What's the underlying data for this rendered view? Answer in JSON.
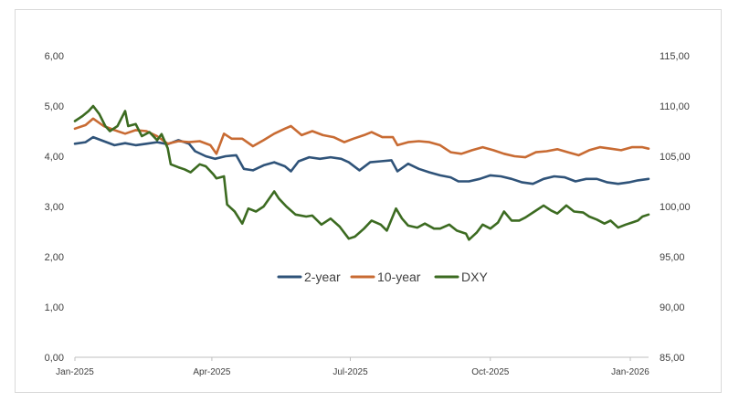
{
  "chart_data": {
    "type": "line",
    "title": "",
    "xlabel": "",
    "ylabel": "",
    "y2label": "",
    "grid": false,
    "legend_position": "center",
    "x_ticks": [
      "Jan-2025",
      "Apr-2025",
      "Jul-2025",
      "Oct-2025",
      "Jan-2026"
    ],
    "x_tick_dates": [
      "2025-01-01",
      "2025-04-01",
      "2025-07-01",
      "2025-10-01",
      "2026-01-01"
    ],
    "x_range": [
      "2025-01-01",
      "2026-01-13"
    ],
    "y_left": {
      "min": 0,
      "max": 6,
      "step": 1,
      "tick_labels": [
        "0,00",
        "1,00",
        "2,00",
        "3,00",
        "4,00",
        "5,00",
        "6,00"
      ]
    },
    "y_right": {
      "min": 85,
      "max": 115,
      "step": 5,
      "tick_labels": [
        "85,00",
        "90,00",
        "95,00",
        "100,00",
        "105,00",
        "110,00",
        "115,00"
      ]
    },
    "series": [
      {
        "name": "2-year",
        "axis": "left",
        "color": "#2f5379",
        "points": [
          [
            "2025-01-01",
            4.25
          ],
          [
            "2025-01-08",
            4.28
          ],
          [
            "2025-01-13",
            4.38
          ],
          [
            "2025-01-20",
            4.3
          ],
          [
            "2025-01-27",
            4.22
          ],
          [
            "2025-02-03",
            4.26
          ],
          [
            "2025-02-10",
            4.22
          ],
          [
            "2025-02-17",
            4.25
          ],
          [
            "2025-02-24",
            4.28
          ],
          [
            "2025-03-03",
            4.24
          ],
          [
            "2025-03-10",
            4.32
          ],
          [
            "2025-03-17",
            4.25
          ],
          [
            "2025-03-21",
            4.1
          ],
          [
            "2025-03-28",
            4.0
          ],
          [
            "2025-04-03",
            3.95
          ],
          [
            "2025-04-10",
            4.0
          ],
          [
            "2025-04-17",
            4.02
          ],
          [
            "2025-04-22",
            3.75
          ],
          [
            "2025-04-28",
            3.72
          ],
          [
            "2025-05-05",
            3.82
          ],
          [
            "2025-05-12",
            3.88
          ],
          [
            "2025-05-19",
            3.8
          ],
          [
            "2025-05-23",
            3.7
          ],
          [
            "2025-05-28",
            3.9
          ],
          [
            "2025-06-04",
            3.98
          ],
          [
            "2025-06-11",
            3.95
          ],
          [
            "2025-06-18",
            3.98
          ],
          [
            "2025-06-25",
            3.95
          ],
          [
            "2025-06-30",
            3.88
          ],
          [
            "2025-07-07",
            3.72
          ],
          [
            "2025-07-14",
            3.88
          ],
          [
            "2025-07-21",
            3.9
          ],
          [
            "2025-07-28",
            3.92
          ],
          [
            "2025-08-01",
            3.7
          ],
          [
            "2025-08-08",
            3.85
          ],
          [
            "2025-08-15",
            3.75
          ],
          [
            "2025-08-22",
            3.68
          ],
          [
            "2025-08-29",
            3.62
          ],
          [
            "2025-09-05",
            3.58
          ],
          [
            "2025-09-10",
            3.5
          ],
          [
            "2025-09-17",
            3.5
          ],
          [
            "2025-09-24",
            3.55
          ],
          [
            "2025-10-01",
            3.62
          ],
          [
            "2025-10-08",
            3.6
          ],
          [
            "2025-10-15",
            3.55
          ],
          [
            "2025-10-22",
            3.48
          ],
          [
            "2025-10-29",
            3.45
          ],
          [
            "2025-11-05",
            3.55
          ],
          [
            "2025-11-12",
            3.6
          ],
          [
            "2025-11-19",
            3.58
          ],
          [
            "2025-11-26",
            3.5
          ],
          [
            "2025-12-03",
            3.55
          ],
          [
            "2025-12-10",
            3.55
          ],
          [
            "2025-12-17",
            3.48
          ],
          [
            "2025-12-24",
            3.45
          ],
          [
            "2025-12-31",
            3.48
          ],
          [
            "2026-01-06",
            3.52
          ],
          [
            "2026-01-13",
            3.55
          ]
        ]
      },
      {
        "name": "10-year",
        "axis": "left",
        "color": "#c86b33",
        "points": [
          [
            "2025-01-01",
            4.55
          ],
          [
            "2025-01-08",
            4.62
          ],
          [
            "2025-01-13",
            4.75
          ],
          [
            "2025-01-20",
            4.6
          ],
          [
            "2025-01-27",
            4.52
          ],
          [
            "2025-02-03",
            4.45
          ],
          [
            "2025-02-10",
            4.52
          ],
          [
            "2025-02-17",
            4.5
          ],
          [
            "2025-02-24",
            4.4
          ],
          [
            "2025-03-03",
            4.25
          ],
          [
            "2025-03-10",
            4.3
          ],
          [
            "2025-03-17",
            4.28
          ],
          [
            "2025-03-24",
            4.3
          ],
          [
            "2025-03-31",
            4.22
          ],
          [
            "2025-04-04",
            4.05
          ],
          [
            "2025-04-09",
            4.45
          ],
          [
            "2025-04-14",
            4.35
          ],
          [
            "2025-04-21",
            4.35
          ],
          [
            "2025-04-28",
            4.2
          ],
          [
            "2025-05-05",
            4.32
          ],
          [
            "2025-05-12",
            4.45
          ],
          [
            "2025-05-19",
            4.55
          ],
          [
            "2025-05-23",
            4.6
          ],
          [
            "2025-05-30",
            4.42
          ],
          [
            "2025-06-06",
            4.5
          ],
          [
            "2025-06-13",
            4.42
          ],
          [
            "2025-06-20",
            4.38
          ],
          [
            "2025-06-27",
            4.28
          ],
          [
            "2025-07-03",
            4.35
          ],
          [
            "2025-07-10",
            4.42
          ],
          [
            "2025-07-15",
            4.48
          ],
          [
            "2025-07-22",
            4.38
          ],
          [
            "2025-07-29",
            4.38
          ],
          [
            "2025-08-01",
            4.22
          ],
          [
            "2025-08-08",
            4.28
          ],
          [
            "2025-08-15",
            4.3
          ],
          [
            "2025-08-22",
            4.28
          ],
          [
            "2025-08-29",
            4.22
          ],
          [
            "2025-09-05",
            4.08
          ],
          [
            "2025-09-12",
            4.05
          ],
          [
            "2025-09-19",
            4.12
          ],
          [
            "2025-09-26",
            4.18
          ],
          [
            "2025-10-03",
            4.12
          ],
          [
            "2025-10-10",
            4.05
          ],
          [
            "2025-10-17",
            4.0
          ],
          [
            "2025-10-24",
            3.98
          ],
          [
            "2025-10-31",
            4.08
          ],
          [
            "2025-11-07",
            4.1
          ],
          [
            "2025-11-14",
            4.14
          ],
          [
            "2025-11-21",
            4.08
          ],
          [
            "2025-11-28",
            4.02
          ],
          [
            "2025-12-05",
            4.12
          ],
          [
            "2025-12-12",
            4.18
          ],
          [
            "2025-12-19",
            4.15
          ],
          [
            "2025-12-26",
            4.12
          ],
          [
            "2026-01-02",
            4.18
          ],
          [
            "2026-01-09",
            4.18
          ],
          [
            "2026-01-13",
            4.15
          ]
        ]
      },
      {
        "name": "DXY",
        "axis": "right",
        "color": "#3c6b21",
        "points": [
          [
            "2025-01-01",
            108.5
          ],
          [
            "2025-01-06",
            109.0
          ],
          [
            "2025-01-10",
            109.5
          ],
          [
            "2025-01-13",
            110.0
          ],
          [
            "2025-01-17",
            109.2
          ],
          [
            "2025-01-21",
            108.0
          ],
          [
            "2025-01-24",
            107.5
          ],
          [
            "2025-01-29",
            108.0
          ],
          [
            "2025-02-03",
            109.5
          ],
          [
            "2025-02-05",
            108.0
          ],
          [
            "2025-02-10",
            108.2
          ],
          [
            "2025-02-14",
            107.0
          ],
          [
            "2025-02-19",
            107.4
          ],
          [
            "2025-02-24",
            106.6
          ],
          [
            "2025-02-27",
            107.2
          ],
          [
            "2025-03-03",
            105.8
          ],
          [
            "2025-03-05",
            104.2
          ],
          [
            "2025-03-10",
            103.9
          ],
          [
            "2025-03-14",
            103.7
          ],
          [
            "2025-03-18",
            103.4
          ],
          [
            "2025-03-24",
            104.2
          ],
          [
            "2025-03-28",
            104.0
          ],
          [
            "2025-04-02",
            103.2
          ],
          [
            "2025-04-04",
            102.8
          ],
          [
            "2025-04-09",
            103.0
          ],
          [
            "2025-04-11",
            100.2
          ],
          [
            "2025-04-16",
            99.5
          ],
          [
            "2025-04-21",
            98.3
          ],
          [
            "2025-04-25",
            99.8
          ],
          [
            "2025-04-30",
            99.5
          ],
          [
            "2025-05-05",
            100.0
          ],
          [
            "2025-05-12",
            101.5
          ],
          [
            "2025-05-15",
            100.8
          ],
          [
            "2025-05-20",
            100.0
          ],
          [
            "2025-05-26",
            99.2
          ],
          [
            "2025-06-02",
            99.0
          ],
          [
            "2025-06-06",
            99.1
          ],
          [
            "2025-06-12",
            98.2
          ],
          [
            "2025-06-18",
            98.8
          ],
          [
            "2025-06-24",
            98.0
          ],
          [
            "2025-06-30",
            96.8
          ],
          [
            "2025-07-04",
            97.0
          ],
          [
            "2025-07-10",
            97.8
          ],
          [
            "2025-07-15",
            98.6
          ],
          [
            "2025-07-21",
            98.2
          ],
          [
            "2025-07-25",
            97.6
          ],
          [
            "2025-07-31",
            99.8
          ],
          [
            "2025-08-04",
            98.8
          ],
          [
            "2025-08-08",
            98.1
          ],
          [
            "2025-08-14",
            97.9
          ],
          [
            "2025-08-19",
            98.3
          ],
          [
            "2025-08-25",
            97.8
          ],
          [
            "2025-08-29",
            97.8
          ],
          [
            "2025-09-04",
            98.2
          ],
          [
            "2025-09-09",
            97.6
          ],
          [
            "2025-09-15",
            97.3
          ],
          [
            "2025-09-17",
            96.7
          ],
          [
            "2025-09-22",
            97.4
          ],
          [
            "2025-09-26",
            98.2
          ],
          [
            "2025-10-01",
            97.8
          ],
          [
            "2025-10-06",
            98.4
          ],
          [
            "2025-10-10",
            99.5
          ],
          [
            "2025-10-15",
            98.6
          ],
          [
            "2025-10-20",
            98.6
          ],
          [
            "2025-10-24",
            98.9
          ],
          [
            "2025-10-30",
            99.5
          ],
          [
            "2025-11-05",
            100.1
          ],
          [
            "2025-11-10",
            99.6
          ],
          [
            "2025-11-14",
            99.3
          ],
          [
            "2025-11-20",
            100.1
          ],
          [
            "2025-11-25",
            99.5
          ],
          [
            "2025-12-01",
            99.4
          ],
          [
            "2025-12-05",
            99.0
          ],
          [
            "2025-12-10",
            98.7
          ],
          [
            "2025-12-15",
            98.3
          ],
          [
            "2025-12-19",
            98.6
          ],
          [
            "2025-12-24",
            97.9
          ],
          [
            "2025-12-29",
            98.2
          ],
          [
            "2026-01-02",
            98.4
          ],
          [
            "2026-01-06",
            98.6
          ],
          [
            "2026-01-09",
            99.0
          ],
          [
            "2026-01-13",
            99.2
          ]
        ]
      }
    ]
  }
}
